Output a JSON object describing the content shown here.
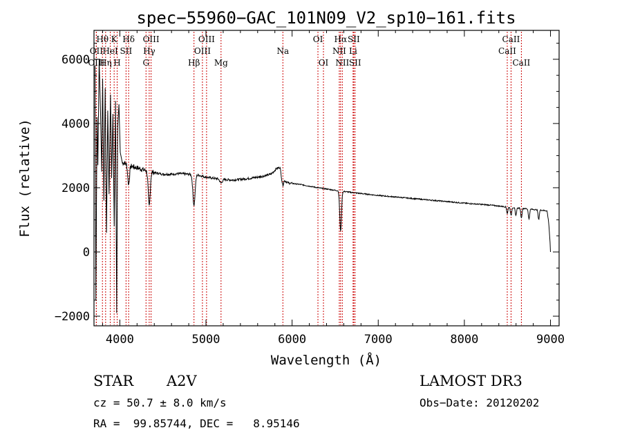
{
  "chart_data": {
    "type": "line",
    "title": "spec−55960−GAC_101N09_V2_sp10−161.fits",
    "xlabel": "Wavelength (Å)",
    "ylabel": "Flux (relative)",
    "xlim": [
      3700,
      9100
    ],
    "ylim": [
      -2300,
      6900
    ],
    "x_ticks": [
      {
        "value": 4000,
        "label": "4000"
      },
      {
        "value": 5000,
        "label": "5000"
      },
      {
        "value": 6000,
        "label": "6000"
      },
      {
        "value": 7000,
        "label": "7000"
      },
      {
        "value": 8000,
        "label": "8000"
      },
      {
        "value": 9000,
        "label": "9000"
      }
    ],
    "y_ticks": [
      {
        "value": -2000,
        "label": "−2000"
      },
      {
        "value": 0,
        "label": "0"
      },
      {
        "value": 2000,
        "label": "2000"
      },
      {
        "value": 4000,
        "label": "4000"
      },
      {
        "value": 6000,
        "label": "6000"
      }
    ],
    "spectral_lines": [
      {
        "name": "Hθ",
        "wavelength": 3798,
        "row": 1
      },
      {
        "name": "OII",
        "wavelength": 3727,
        "row": 2
      },
      {
        "name": "OIII",
        "wavelength": 3727,
        "row": 3
      },
      {
        "name": "Hη",
        "wavelength": 3835,
        "row": 3
      },
      {
        "name": "HeI",
        "wavelength": 3889,
        "row": 2
      },
      {
        "name": "K",
        "wavelength": 3934,
        "row": 1
      },
      {
        "name": "H",
        "wavelength": 3969,
        "row": 3
      },
      {
        "name": "SII",
        "wavelength": 4072,
        "row": 2
      },
      {
        "name": "Hδ",
        "wavelength": 4102,
        "row": 1
      },
      {
        "name": "Hγ",
        "wavelength": 4341,
        "row": 2
      },
      {
        "name": "G",
        "wavelength": 4304,
        "row": 3
      },
      {
        "name": "OIII",
        "wavelength": 4363,
        "row": 1
      },
      {
        "name": "Hβ",
        "wavelength": 4861,
        "row": 3
      },
      {
        "name": "OIII",
        "wavelength": 4959,
        "row": 2
      },
      {
        "name": "OIII",
        "wavelength": 5007,
        "row": 1
      },
      {
        "name": "Mg",
        "wavelength": 5175,
        "row": 3
      },
      {
        "name": "Na",
        "wavelength": 5893,
        "row": 2
      },
      {
        "name": "OI",
        "wavelength": 6300,
        "row": 1
      },
      {
        "name": "OI",
        "wavelength": 6364,
        "row": 3
      },
      {
        "name": "NII",
        "wavelength": 6548,
        "row": 2
      },
      {
        "name": "Hα",
        "wavelength": 6563,
        "row": 1
      },
      {
        "name": "NII",
        "wavelength": 6583,
        "row": 3
      },
      {
        "name": "SII",
        "wavelength": 6716,
        "row": 1
      },
      {
        "name": "Li",
        "wavelength": 6708,
        "row": 2
      },
      {
        "name": "SII",
        "wavelength": 6731,
        "row": 3
      },
      {
        "name": "CaII",
        "wavelength": 8542,
        "row": 1
      },
      {
        "name": "CaII",
        "wavelength": 8498,
        "row": 2
      },
      {
        "name": "CaII",
        "wavelength": 8662,
        "row": 3
      }
    ],
    "continuum": [
      [
        3700,
        300
      ],
      [
        3760,
        1600
      ],
      [
        3800,
        2000
      ],
      [
        3850,
        2200
      ],
      [
        3900,
        2350
      ],
      [
        3950,
        2600
      ],
      [
        4000,
        2750
      ],
      [
        4050,
        2780
      ],
      [
        4100,
        2700
      ],
      [
        4200,
        2620
      ],
      [
        4300,
        2540
      ],
      [
        4400,
        2470
      ],
      [
        4500,
        2420
      ],
      [
        4600,
        2420
      ],
      [
        4700,
        2440
      ],
      [
        4800,
        2420
      ],
      [
        4900,
        2400
      ],
      [
        5000,
        2330
      ],
      [
        5100,
        2290
      ],
      [
        5200,
        2260
      ],
      [
        5300,
        2240
      ],
      [
        5400,
        2260
      ],
      [
        5500,
        2290
      ],
      [
        5600,
        2330
      ],
      [
        5700,
        2380
      ],
      [
        5760,
        2430
      ],
      [
        5820,
        2600
      ],
      [
        5860,
        2640
      ],
      [
        5880,
        2300
      ],
      [
        5950,
        2150
      ],
      [
        6100,
        2100
      ],
      [
        6300,
        2000
      ],
      [
        6500,
        1920
      ],
      [
        6700,
        1850
      ],
      [
        7000,
        1760
      ],
      [
        7500,
        1640
      ],
      [
        8000,
        1520
      ],
      [
        8300,
        1460
      ],
      [
        8500,
        1400
      ],
      [
        8700,
        1350
      ],
      [
        8900,
        1300
      ],
      [
        8960,
        1280
      ],
      [
        8980,
        900
      ],
      [
        9000,
        0
      ]
    ],
    "absorption": [
      {
        "wavelength": 4102,
        "depth": 600,
        "width": 14
      },
      {
        "wavelength": 4341,
        "depth": 1100,
        "width": 16
      },
      {
        "wavelength": 4861,
        "depth": 950,
        "width": 18
      },
      {
        "wavelength": 6563,
        "depth": 1250,
        "width": 14
      },
      {
        "wavelength": 5175,
        "depth": 120,
        "width": 20
      },
      {
        "wavelength": 5893,
        "depth": 180,
        "width": 12
      },
      {
        "wavelength": 8498,
        "depth": 200,
        "width": 10
      },
      {
        "wavelength": 8542,
        "depth": 260,
        "width": 10
      },
      {
        "wavelength": 8598,
        "depth": 250,
        "width": 10
      },
      {
        "wavelength": 8662,
        "depth": 300,
        "width": 10
      },
      {
        "wavelength": 8750,
        "depth": 320,
        "width": 10
      },
      {
        "wavelength": 8863,
        "depth": 300,
        "width": 10
      }
    ],
    "blue_spikes": [
      [
        3712,
        5800
      ],
      [
        3722,
        -1500
      ],
      [
        3735,
        4200
      ],
      [
        3745,
        2700
      ],
      [
        3760,
        6000
      ],
      [
        3775,
        4500
      ],
      [
        3790,
        2500
      ],
      [
        3800,
        5400
      ],
      [
        3815,
        1600
      ],
      [
        3830,
        5100
      ],
      [
        3845,
        600
      ],
      [
        3860,
        4400
      ],
      [
        3875,
        1800
      ],
      [
        3892,
        4900
      ],
      [
        3905,
        2300
      ],
      [
        3920,
        4300
      ],
      [
        3935,
        800
      ],
      [
        3950,
        4700
      ],
      [
        3963,
        -1900
      ],
      [
        3975,
        3900
      ],
      [
        3990,
        4600
      ],
      [
        4005,
        3100
      ],
      [
        4020,
        2900
      ]
    ]
  },
  "info": {
    "object_type": "STAR",
    "spectral_class": "A2V",
    "survey": "LAMOST DR3",
    "redshift": "cz = 50.7 ± 8.0 km/s",
    "obs_date": "Obs−Date: 20120202",
    "coords": "RA =  99.85744, DEC =   8.95146"
  },
  "colors": {
    "line_markers": "#cc0000",
    "spectrum": "#000000",
    "text": "#000000"
  }
}
